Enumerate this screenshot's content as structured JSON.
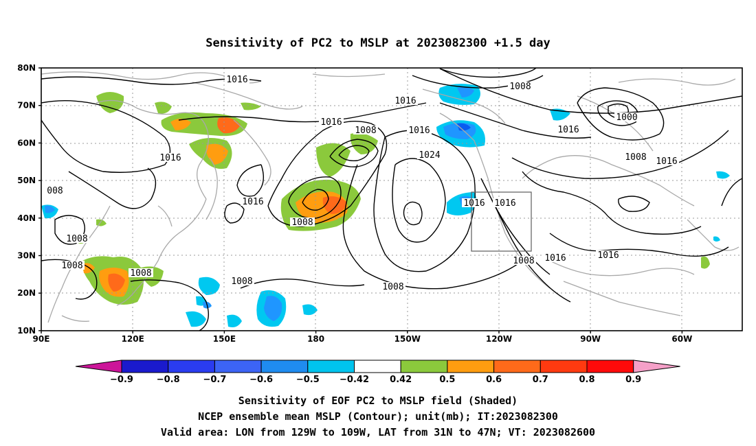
{
  "title": "Sensitivity of PC2 to MSLP at 2023082300 +1.5 day",
  "map": {
    "lat_ticks": [
      "80N",
      "70N",
      "60N",
      "50N",
      "40N",
      "30N",
      "20N",
      "10N"
    ],
    "lon_ticks": [
      "90E",
      "120E",
      "150E",
      "180",
      "150W",
      "120W",
      "90W",
      "60W"
    ],
    "valid_box_label": "Valid area: LON from 129W to 109W, LAT from 31N to 47N",
    "contour_labels": [
      "1016",
      "1008",
      "1016",
      "1016",
      "1008",
      "1016",
      "1000",
      "1016",
      "1008",
      "1016",
      "1024",
      "008",
      "1016",
      "1016",
      "1008",
      "1008",
      "1008",
      "1008",
      "1008",
      "1008",
      "1016",
      "1016",
      "1016",
      "1008",
      "1016"
    ],
    "shade_colors": {
      "g": "#8bc93c",
      "o1": "#ff9d10",
      "o2": "#ff6a1a",
      "r": "#ff3a10",
      "lb": "#00c8f0",
      "b1": "#1f96ff",
      "b2": "#0a5cf0"
    }
  },
  "colorbar": {
    "labels": [
      "−0.9",
      "−0.8",
      "−0.7",
      "−0.6",
      "−0.5",
      "−0.42",
      "0.42",
      "0.5",
      "0.6",
      "0.7",
      "0.8",
      "0.9"
    ],
    "colors": [
      "#1a1acd",
      "#2a3cf0",
      "#3c64f5",
      "#1f8cf0",
      "#00c4ee",
      "#ffffff",
      "#8bc93c",
      "#ff9d10",
      "#ff6a1a",
      "#ff3a10",
      "#ff0a0a"
    ],
    "low_end_color": "#cc1599",
    "high_end_color": "#f5a0c8"
  },
  "captions": [
    "Sensitivity of EOF PC2 to MSLP field (Shaded)",
    "NCEP ensemble mean MSLP (Contour); unit(mb); IT:2023082300",
    "Valid area: LON from 129W to 109W, LAT from 31N to 47N; VT: 2023082600"
  ]
}
